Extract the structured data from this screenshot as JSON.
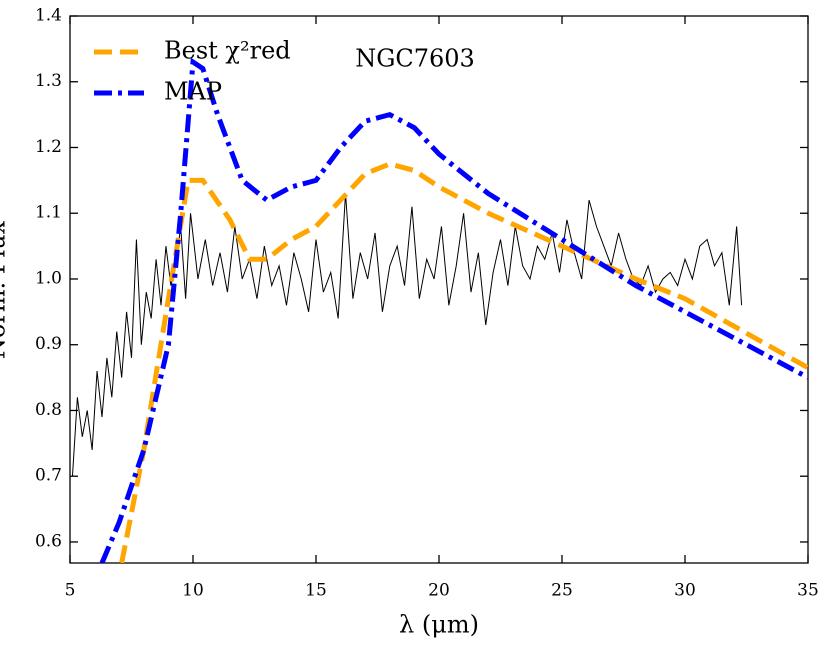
{
  "chart_data": {
    "type": "line",
    "xlabel": "λ (μm)",
    "ylabel": "Norm. Flux",
    "annotation": "NGC7603",
    "xlim": [
      5,
      35
    ],
    "xticks": [
      5,
      10,
      15,
      20,
      25,
      30,
      35
    ],
    "ylim": [
      0.568,
      1.4
    ],
    "yticks": [
      0.6,
      0.7,
      0.8,
      0.9,
      {
        "value": 1,
        "label": "1.0"
      },
      1.1,
      1.2,
      1.3,
      1.4
    ],
    "legend": "upper left",
    "series": [
      {
        "color": "#000000",
        "style": "solid",
        "width": 1,
        "x": [
          5.1,
          5.3,
          5.5,
          5.7,
          5.9,
          6.1,
          6.3,
          6.5,
          6.7,
          6.9,
          7.1,
          7.3,
          7.5,
          7.7,
          7.9,
          8.1,
          8.3,
          8.5,
          8.7,
          8.9,
          9.1,
          9.3,
          9.5,
          9.7,
          9.9,
          10.2,
          10.5,
          10.8,
          11.1,
          11.4,
          11.7,
          12.0,
          12.3,
          12.6,
          12.9,
          13.2,
          13.5,
          13.8,
          14.1,
          14.4,
          14.7,
          15.0,
          15.3,
          15.6,
          15.9,
          16.2,
          16.5,
          16.8,
          17.1,
          17.4,
          17.7,
          18.0,
          18.3,
          18.6,
          18.9,
          19.2,
          19.5,
          19.8,
          20.1,
          20.4,
          20.7,
          21.0,
          21.3,
          21.6,
          21.9,
          22.2,
          22.5,
          22.8,
          23.1,
          23.4,
          23.7,
          24.0,
          24.3,
          24.6,
          24.9,
          25.2,
          25.5,
          25.8,
          26.1,
          26.4,
          26.7,
          27.0,
          27.3,
          27.6,
          27.9,
          28.2,
          28.5,
          28.8,
          29.1,
          29.4,
          29.7,
          30.0,
          30.3,
          30.6,
          30.9,
          31.2,
          31.5,
          31.8,
          32.1,
          32.3
        ],
        "values": [
          0.7,
          0.82,
          0.76,
          0.8,
          0.74,
          0.86,
          0.79,
          0.88,
          0.82,
          0.92,
          0.85,
          0.95,
          0.88,
          1.06,
          0.9,
          0.98,
          0.94,
          1.03,
          0.96,
          1.05,
          0.99,
          1.02,
          1.08,
          0.97,
          1.1,
          1.0,
          1.06,
          0.99,
          1.04,
          0.98,
          1.08,
          1.0,
          1.03,
          0.97,
          1.05,
          0.99,
          1.02,
          0.96,
          1.04,
          1.0,
          0.95,
          1.06,
          0.98,
          1.01,
          0.94,
          1.13,
          0.97,
          1.04,
          1.0,
          1.07,
          0.95,
          1.02,
          1.05,
          0.99,
          1.11,
          0.97,
          1.03,
          1.0,
          1.08,
          0.96,
          1.02,
          1.1,
          0.98,
          1.04,
          0.93,
          1.01,
          1.06,
          0.99,
          1.08,
          1.02,
          1.0,
          1.05,
          1.03,
          1.07,
          1.01,
          1.09,
          1.04,
          1.0,
          1.12,
          1.08,
          1.05,
          1.02,
          1.07,
          1.03,
          1.0,
          0.99,
          1.02,
          0.98,
          1.0,
          1.01,
          0.99,
          1.03,
          1.0,
          1.05,
          1.06,
          1.02,
          1.04,
          0.96,
          1.08,
          0.96
        ]
      },
      {
        "name": "Best χ²red",
        "color": "#ffa500",
        "style": "dashed",
        "width": 5,
        "x": [
          7.1,
          8,
          9,
          9.8,
          10.4,
          11.5,
          12.3,
          13,
          14,
          15,
          16,
          17,
          18,
          19,
          20,
          22,
          25,
          28,
          30,
          35
        ],
        "values": [
          0.568,
          0.74,
          0.97,
          1.15,
          1.15,
          1.09,
          1.03,
          1.03,
          1.06,
          1.08,
          1.12,
          1.16,
          1.175,
          1.165,
          1.14,
          1.1,
          1.05,
          1.0,
          0.97,
          0.865
        ]
      },
      {
        "name": "MAP",
        "color": "#0000ff",
        "style": "dashdot",
        "width": 5,
        "x": [
          6.3,
          7,
          8,
          9,
          9.5,
          10,
          10.4,
          11,
          12,
          13,
          14,
          15,
          16,
          17,
          18,
          19,
          20,
          22,
          25,
          28,
          32,
          35
        ],
        "values": [
          0.568,
          0.63,
          0.74,
          0.9,
          1.1,
          1.33,
          1.32,
          1.25,
          1.15,
          1.12,
          1.14,
          1.15,
          1.2,
          1.24,
          1.25,
          1.23,
          1.19,
          1.13,
          1.06,
          0.99,
          0.91,
          0.85
        ]
      }
    ]
  }
}
